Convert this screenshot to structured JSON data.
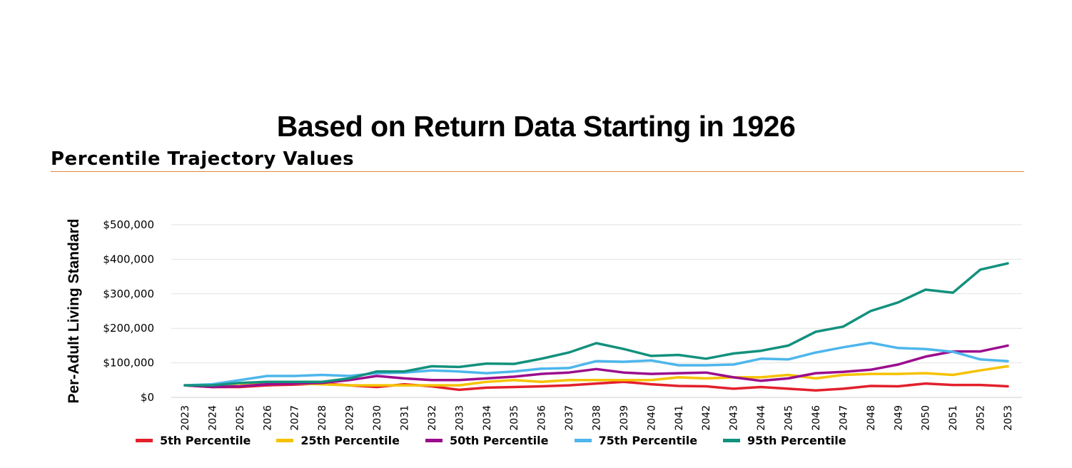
{
  "title": "Based on Return Data Starting in 1926",
  "subtitle": "Percentile Trajectory Values",
  "chart_data": {
    "type": "line",
    "ylabel": "Per-Adult Living Standard",
    "xlabel": "",
    "ylim": [
      0,
      500000
    ],
    "yticks": [
      {
        "value": 0,
        "label": "$0"
      },
      {
        "value": 100000,
        "label": "$100,000"
      },
      {
        "value": 200000,
        "label": "$200,000"
      },
      {
        "value": 300000,
        "label": "$300,000"
      },
      {
        "value": 400000,
        "label": "$400,000"
      },
      {
        "value": 500000,
        "label": "$500,000"
      }
    ],
    "grid": true,
    "legend_position": "bottom",
    "categories": [
      "2023",
      "2024",
      "2025",
      "2026",
      "2027",
      "2028",
      "2029",
      "2030",
      "2031",
      "2032",
      "2033",
      "2034",
      "2035",
      "2036",
      "2037",
      "2038",
      "2039",
      "2040",
      "2041",
      "2042",
      "2043",
      "2044",
      "2045",
      "2046",
      "2047",
      "2048",
      "2049",
      "2050",
      "2051",
      "2052",
      "2053"
    ],
    "series": [
      {
        "name": "5th Percentile",
        "color": "#e3202c",
        "values": [
          35000,
          30000,
          30000,
          35000,
          37000,
          40000,
          35000,
          30000,
          38000,
          32000,
          22000,
          28000,
          30000,
          32000,
          35000,
          40000,
          45000,
          38000,
          33000,
          32000,
          25000,
          30000,
          25000,
          20000,
          25000,
          33000,
          32000,
          40000,
          36000,
          36000,
          32000
        ]
      },
      {
        "name": "25th Percentile",
        "color": "#f5c200",
        "values": [
          35000,
          35000,
          40000,
          40000,
          40000,
          38000,
          35000,
          35000,
          35000,
          35000,
          35000,
          45000,
          50000,
          45000,
          50000,
          50000,
          50000,
          50000,
          58000,
          55000,
          58000,
          58000,
          65000,
          55000,
          65000,
          68000,
          68000,
          70000,
          65000,
          78000,
          90000
        ]
      },
      {
        "name": "50th Percentile",
        "color": "#9b0d8d",
        "values": [
          35000,
          30000,
          32000,
          38000,
          40000,
          42000,
          50000,
          62000,
          55000,
          50000,
          50000,
          55000,
          60000,
          68000,
          72000,
          82000,
          72000,
          68000,
          70000,
          72000,
          58000,
          48000,
          55000,
          70000,
          74000,
          80000,
          95000,
          118000,
          133000,
          133000,
          150000
        ]
      },
      {
        "name": "75th Percentile",
        "color": "#4db6ec",
        "values": [
          35000,
          38000,
          50000,
          62000,
          62000,
          65000,
          62000,
          70000,
          72000,
          78000,
          75000,
          70000,
          75000,
          83000,
          85000,
          105000,
          103000,
          107000,
          93000,
          93000,
          95000,
          112000,
          110000,
          130000,
          145000,
          158000,
          143000,
          140000,
          132000,
          110000,
          105000
        ]
      },
      {
        "name": "95th Percentile",
        "color": "#12917d",
        "values": [
          35000,
          35000,
          42000,
          45000,
          45000,
          45000,
          55000,
          75000,
          75000,
          90000,
          88000,
          98000,
          97000,
          112000,
          130000,
          157000,
          140000,
          120000,
          123000,
          112000,
          127000,
          135000,
          150000,
          190000,
          205000,
          250000,
          275000,
          312000,
          303000,
          370000,
          388000
        ]
      }
    ]
  }
}
